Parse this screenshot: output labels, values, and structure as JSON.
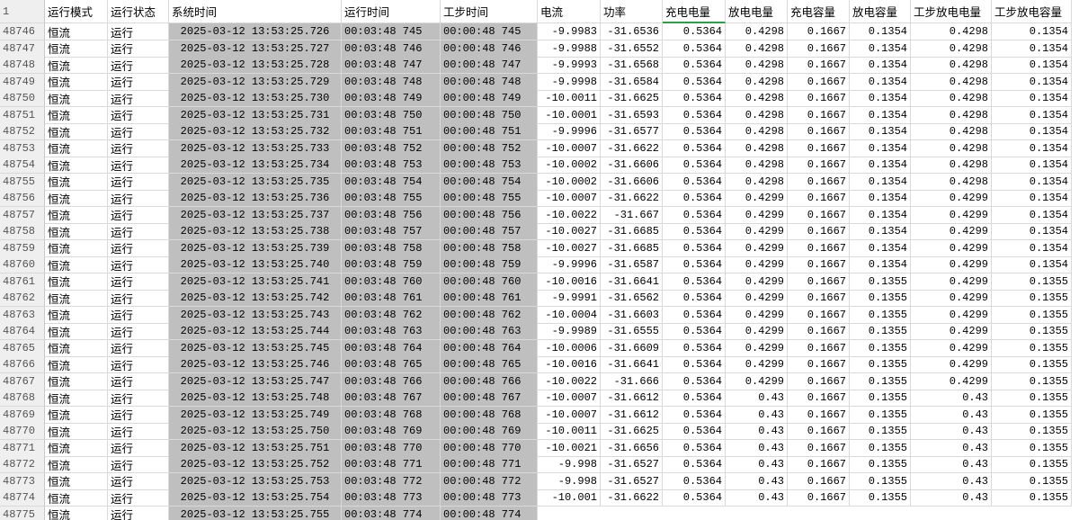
{
  "header": {
    "row_number": "1",
    "columns": [
      "运行模式",
      "运行状态",
      "系统时间",
      "运行时间",
      "工步时间",
      "电流",
      "功率",
      "充电电量",
      "放电电量",
      "充电容量",
      "放电容量",
      "工步放电电量",
      "工步放电容量"
    ]
  },
  "rows": [
    [
      "48746",
      "恒流",
      "运行",
      "2025-03-12 13:53:25.726",
      "00:03:48 745",
      "00:00:48 745",
      "-9.9983",
      "-31.6536",
      "0.5364",
      "0.4298",
      "0.1667",
      "0.1354",
      "0.4298",
      "0.1354"
    ],
    [
      "48747",
      "恒流",
      "运行",
      "2025-03-12 13:53:25.727",
      "00:03:48 746",
      "00:00:48 746",
      "-9.9988",
      "-31.6552",
      "0.5364",
      "0.4298",
      "0.1667",
      "0.1354",
      "0.4298",
      "0.1354"
    ],
    [
      "48748",
      "恒流",
      "运行",
      "2025-03-12 13:53:25.728",
      "00:03:48 747",
      "00:00:48 747",
      "-9.9993",
      "-31.6568",
      "0.5364",
      "0.4298",
      "0.1667",
      "0.1354",
      "0.4298",
      "0.1354"
    ],
    [
      "48749",
      "恒流",
      "运行",
      "2025-03-12 13:53:25.729",
      "00:03:48 748",
      "00:00:48 748",
      "-9.9998",
      "-31.6584",
      "0.5364",
      "0.4298",
      "0.1667",
      "0.1354",
      "0.4298",
      "0.1354"
    ],
    [
      "48750",
      "恒流",
      "运行",
      "2025-03-12 13:53:25.730",
      "00:03:48 749",
      "00:00:48 749",
      "-10.0011",
      "-31.6625",
      "0.5364",
      "0.4298",
      "0.1667",
      "0.1354",
      "0.4298",
      "0.1354"
    ],
    [
      "48751",
      "恒流",
      "运行",
      "2025-03-12 13:53:25.731",
      "00:03:48 750",
      "00:00:48 750",
      "-10.0001",
      "-31.6593",
      "0.5364",
      "0.4298",
      "0.1667",
      "0.1354",
      "0.4298",
      "0.1354"
    ],
    [
      "48752",
      "恒流",
      "运行",
      "2025-03-12 13:53:25.732",
      "00:03:48 751",
      "00:00:48 751",
      "-9.9996",
      "-31.6577",
      "0.5364",
      "0.4298",
      "0.1667",
      "0.1354",
      "0.4298",
      "0.1354"
    ],
    [
      "48753",
      "恒流",
      "运行",
      "2025-03-12 13:53:25.733",
      "00:03:48 752",
      "00:00:48 752",
      "-10.0007",
      "-31.6622",
      "0.5364",
      "0.4298",
      "0.1667",
      "0.1354",
      "0.4298",
      "0.1354"
    ],
    [
      "48754",
      "恒流",
      "运行",
      "2025-03-12 13:53:25.734",
      "00:03:48 753",
      "00:00:48 753",
      "-10.0002",
      "-31.6606",
      "0.5364",
      "0.4298",
      "0.1667",
      "0.1354",
      "0.4298",
      "0.1354"
    ],
    [
      "48755",
      "恒流",
      "运行",
      "2025-03-12 13:53:25.735",
      "00:03:48 754",
      "00:00:48 754",
      "-10.0002",
      "-31.6606",
      "0.5364",
      "0.4298",
      "0.1667",
      "0.1354",
      "0.4298",
      "0.1354"
    ],
    [
      "48756",
      "恒流",
      "运行",
      "2025-03-12 13:53:25.736",
      "00:03:48 755",
      "00:00:48 755",
      "-10.0007",
      "-31.6622",
      "0.5364",
      "0.4299",
      "0.1667",
      "0.1354",
      "0.4299",
      "0.1354"
    ],
    [
      "48757",
      "恒流",
      "运行",
      "2025-03-12 13:53:25.737",
      "00:03:48 756",
      "00:00:48 756",
      "-10.0022",
      "-31.667",
      "0.5364",
      "0.4299",
      "0.1667",
      "0.1354",
      "0.4299",
      "0.1354"
    ],
    [
      "48758",
      "恒流",
      "运行",
      "2025-03-12 13:53:25.738",
      "00:03:48 757",
      "00:00:48 757",
      "-10.0027",
      "-31.6685",
      "0.5364",
      "0.4299",
      "0.1667",
      "0.1354",
      "0.4299",
      "0.1354"
    ],
    [
      "48759",
      "恒流",
      "运行",
      "2025-03-12 13:53:25.739",
      "00:03:48 758",
      "00:00:48 758",
      "-10.0027",
      "-31.6685",
      "0.5364",
      "0.4299",
      "0.1667",
      "0.1354",
      "0.4299",
      "0.1354"
    ],
    [
      "48760",
      "恒流",
      "运行",
      "2025-03-12 13:53:25.740",
      "00:03:48 759",
      "00:00:48 759",
      "-9.9996",
      "-31.6587",
      "0.5364",
      "0.4299",
      "0.1667",
      "0.1354",
      "0.4299",
      "0.1354"
    ],
    [
      "48761",
      "恒流",
      "运行",
      "2025-03-12 13:53:25.741",
      "00:03:48 760",
      "00:00:48 760",
      "-10.0016",
      "-31.6641",
      "0.5364",
      "0.4299",
      "0.1667",
      "0.1355",
      "0.4299",
      "0.1355"
    ],
    [
      "48762",
      "恒流",
      "运行",
      "2025-03-12 13:53:25.742",
      "00:03:48 761",
      "00:00:48 761",
      "-9.9991",
      "-31.6562",
      "0.5364",
      "0.4299",
      "0.1667",
      "0.1355",
      "0.4299",
      "0.1355"
    ],
    [
      "48763",
      "恒流",
      "运行",
      "2025-03-12 13:53:25.743",
      "00:03:48 762",
      "00:00:48 762",
      "-10.0004",
      "-31.6603",
      "0.5364",
      "0.4299",
      "0.1667",
      "0.1355",
      "0.4299",
      "0.1355"
    ],
    [
      "48764",
      "恒流",
      "运行",
      "2025-03-12 13:53:25.744",
      "00:03:48 763",
      "00:00:48 763",
      "-9.9989",
      "-31.6555",
      "0.5364",
      "0.4299",
      "0.1667",
      "0.1355",
      "0.4299",
      "0.1355"
    ],
    [
      "48765",
      "恒流",
      "运行",
      "2025-03-12 13:53:25.745",
      "00:03:48 764",
      "00:00:48 764",
      "-10.0006",
      "-31.6609",
      "0.5364",
      "0.4299",
      "0.1667",
      "0.1355",
      "0.4299",
      "0.1355"
    ],
    [
      "48766",
      "恒流",
      "运行",
      "2025-03-12 13:53:25.746",
      "00:03:48 765",
      "00:00:48 765",
      "-10.0016",
      "-31.6641",
      "0.5364",
      "0.4299",
      "0.1667",
      "0.1355",
      "0.4299",
      "0.1355"
    ],
    [
      "48767",
      "恒流",
      "运行",
      "2025-03-12 13:53:25.747",
      "00:03:48 766",
      "00:00:48 766",
      "-10.0022",
      "-31.666",
      "0.5364",
      "0.4299",
      "0.1667",
      "0.1355",
      "0.4299",
      "0.1355"
    ],
    [
      "48768",
      "恒流",
      "运行",
      "2025-03-12 13:53:25.748",
      "00:03:48 767",
      "00:00:48 767",
      "-10.0007",
      "-31.6612",
      "0.5364",
      "0.43",
      "0.1667",
      "0.1355",
      "0.43",
      "0.1355"
    ],
    [
      "48769",
      "恒流",
      "运行",
      "2025-03-12 13:53:25.749",
      "00:03:48 768",
      "00:00:48 768",
      "-10.0007",
      "-31.6612",
      "0.5364",
      "0.43",
      "0.1667",
      "0.1355",
      "0.43",
      "0.1355"
    ],
    [
      "48770",
      "恒流",
      "运行",
      "2025-03-12 13:53:25.750",
      "00:03:48 769",
      "00:00:48 769",
      "-10.0011",
      "-31.6625",
      "0.5364",
      "0.43",
      "0.1667",
      "0.1355",
      "0.43",
      "0.1355"
    ],
    [
      "48771",
      "恒流",
      "运行",
      "2025-03-12 13:53:25.751",
      "00:03:48 770",
      "00:00:48 770",
      "-10.0021",
      "-31.6656",
      "0.5364",
      "0.43",
      "0.1667",
      "0.1355",
      "0.43",
      "0.1355"
    ],
    [
      "48772",
      "恒流",
      "运行",
      "2025-03-12 13:53:25.752",
      "00:03:48 771",
      "00:00:48 771",
      "-9.998",
      "-31.6527",
      "0.5364",
      "0.43",
      "0.1667",
      "0.1355",
      "0.43",
      "0.1355"
    ],
    [
      "48773",
      "恒流",
      "运行",
      "2025-03-12 13:53:25.753",
      "00:03:48 772",
      "00:00:48 772",
      "-9.998",
      "-31.6527",
      "0.5364",
      "0.43",
      "0.1667",
      "0.1355",
      "0.43",
      "0.1355"
    ],
    [
      "48774",
      "恒流",
      "运行",
      "2025-03-12 13:53:25.754",
      "00:03:48 773",
      "00:00:48 773",
      "-10.001",
      "-31.6622",
      "0.5364",
      "0.43",
      "0.1667",
      "0.1355",
      "0.43",
      "0.1355"
    ],
    [
      "48775",
      "恒流",
      "运行",
      "2025-03-12 13:53:25.755",
      "00:03:48 774",
      "00:00:48 774"
    ]
  ]
}
